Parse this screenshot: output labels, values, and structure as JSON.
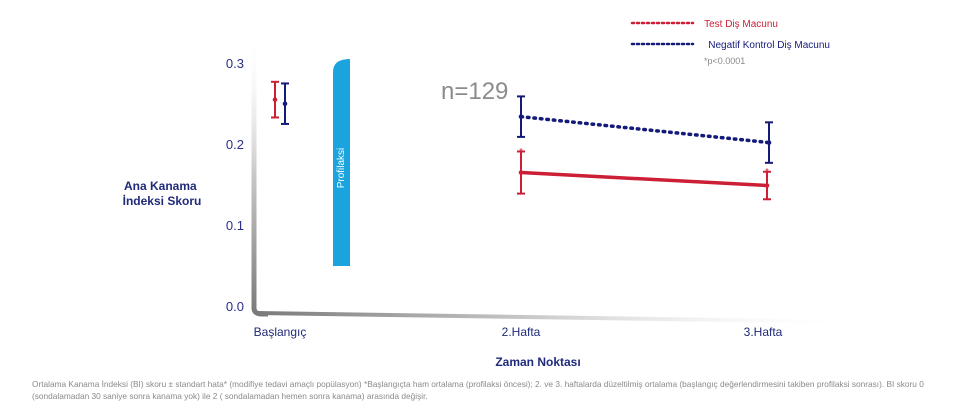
{
  "chart_data": {
    "type": "line",
    "title": "",
    "xlabel": "Zaman Noktası",
    "ylabel": "Ana Kanama İndeksi Skoru",
    "categories": [
      "Başlangıç",
      "2.Hafta",
      "3.Hafta"
    ],
    "ylim": [
      0.0,
      0.3
    ],
    "yticks": [
      "0.0",
      "0.1",
      "0.2",
      "0.3"
    ],
    "grid": false,
    "legend_position": "top-right",
    "series": [
      {
        "name": "Test Diş Macunu",
        "color": "#cc1f36",
        "values": [
          0.256,
          0.166,
          0.15
        ],
        "errors": [
          0.022,
          0.026,
          0.017
        ],
        "style": "solid"
      },
      {
        "name": "Negatif Kontrol Diş Macunu",
        "color": "#141a7a",
        "values": [
          0.251,
          0.235,
          0.203
        ],
        "errors": [
          0.025,
          0.025,
          0.025
        ],
        "style": "dotted"
      }
    ],
    "annotations": {
      "significance": "*p<0.0001",
      "sample_size": "n=129",
      "prophylaxis": "Profilaksi",
      "marker": "*"
    }
  },
  "footnote": "Ortalama Kanama İndeksi (BI) skoru ± standart hata* (modifiye tedavi amaçlı popülasyon) *Başlangıçta ham ortalama (profilaksi öncesi); 2. ve 3. haftalarda düzeltilmiş ortalama (başlangıç değerlendirmesini takiben profilaksi sonrası). BI skoru 0 (sondalamadan 30 saniye sonra kanama yok) ile 2 ( sondalamadan hemen sonra kanama) arasında değişir.",
  "colors": {
    "test": "#cc1f36",
    "control": "#141a7a",
    "prophylaxis_bar": "#1aa3dc",
    "axis_text": "#2a2f8a",
    "label_text": "#1f2a7a",
    "n_text": "#8c8c8c"
  }
}
